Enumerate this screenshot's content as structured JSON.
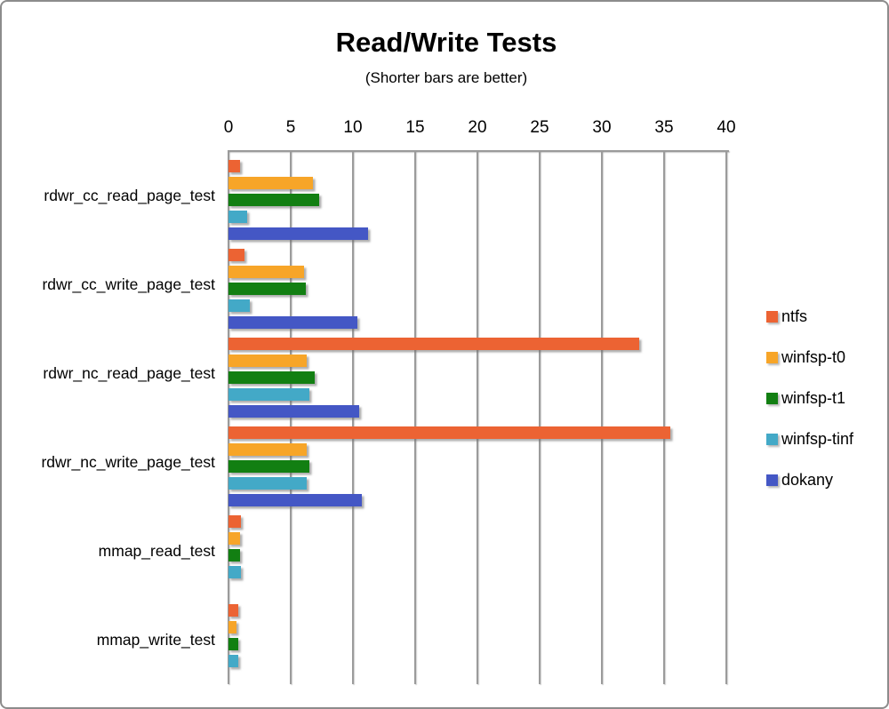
{
  "chart": {
    "title": "Read/Write Tests",
    "subtitle": "(Shorter bars are better)"
  },
  "chart_data": {
    "type": "bar",
    "orientation": "horizontal",
    "title": "Read/Write Tests",
    "subtitle": "(Shorter bars are better)",
    "categories": [
      "rdwr_cc_read_page_test",
      "rdwr_cc_write_page_test",
      "rdwr_nc_read_page_test",
      "rdwr_nc_write_page_test",
      "mmap_read_test",
      "mmap_write_test"
    ],
    "series": [
      {
        "name": "ntfs",
        "color": "#EC6333",
        "values": [
          0.95,
          1.25,
          33.0,
          35.5,
          1.0,
          0.75
        ]
      },
      {
        "name": "winfsp-t0",
        "color": "#F7A528",
        "values": [
          6.8,
          6.1,
          6.25,
          6.3,
          0.95,
          0.65
        ]
      },
      {
        "name": "winfsp-t1",
        "color": "#127F12",
        "values": [
          7.3,
          6.2,
          6.9,
          6.5,
          0.95,
          0.75
        ]
      },
      {
        "name": "winfsp-tinf",
        "color": "#43A9C7",
        "values": [
          1.5,
          1.7,
          6.5,
          6.3,
          1.0,
          0.75
        ]
      },
      {
        "name": "dokany",
        "color": "#4457C5",
        "values": [
          11.2,
          10.35,
          10.5,
          10.7,
          0,
          0
        ]
      }
    ],
    "x_axis": {
      "min": 0,
      "max": 40,
      "tick_step": 5,
      "ticks": [
        0,
        5,
        10,
        15,
        20,
        25,
        30,
        35,
        40
      ],
      "position": "top"
    },
    "grid": true,
    "gridline_color": "#9B9B9B",
    "legend_position": "right",
    "background_color": "#FFFFFF"
  }
}
